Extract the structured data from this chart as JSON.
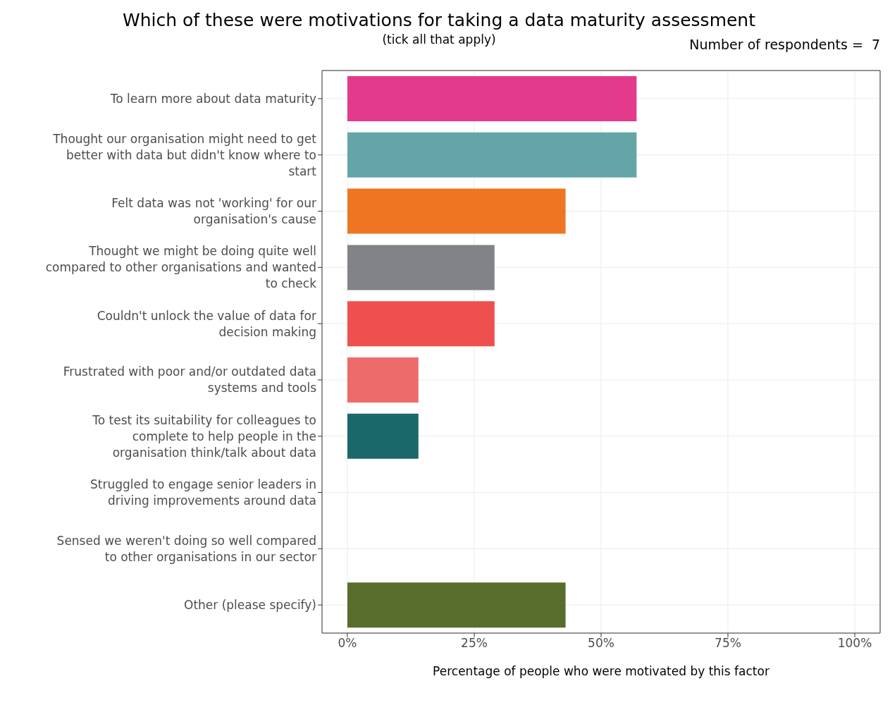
{
  "chart_data": {
    "type": "bar",
    "orientation": "horizontal",
    "title": "Which of these were motivations for taking a data maturity assessment",
    "subtitle": "(tick all that apply)",
    "annotations": [
      "Number of respondents =  7"
    ],
    "xlabel": "Percentage of people who were motivated by this factor",
    "categories": [
      "To learn more about data maturity",
      "Thought our organisation might need to get better with data but didn't know where to start",
      "Felt data was not 'working' for our organisation's cause",
      "Thought we might be doing quite well compared to other organisations and wanted to check",
      "Couldn't unlock the value of data for decision making",
      "Frustrated with poor and/or outdated data systems and tools",
      "To test its suitability for colleagues to complete to help people in the organisation think/talk about data",
      "Struggled to engage senior leaders in driving improvements around data",
      "Sensed we weren't doing so well compared to other organisations in our sector",
      "Other (please specify)"
    ],
    "values": [
      57,
      57,
      43,
      29,
      29,
      14,
      14,
      0,
      0,
      43
    ],
    "colors": [
      "#e33a8c",
      "#64a6a8",
      "#ee7623",
      "#828387",
      "#ef504d",
      "#ee6b6b",
      "#1b686b",
      "#999999",
      "#999999",
      "#586d2c"
    ],
    "xlim": [
      -5,
      105
    ],
    "xticks": [
      {
        "value": 0,
        "label": "0%"
      },
      {
        "value": 25,
        "label": "25%"
      },
      {
        "value": 50,
        "label": "50%"
      },
      {
        "value": 75,
        "label": "75%"
      },
      {
        "value": 100,
        "label": "100%"
      }
    ],
    "grid": true
  }
}
